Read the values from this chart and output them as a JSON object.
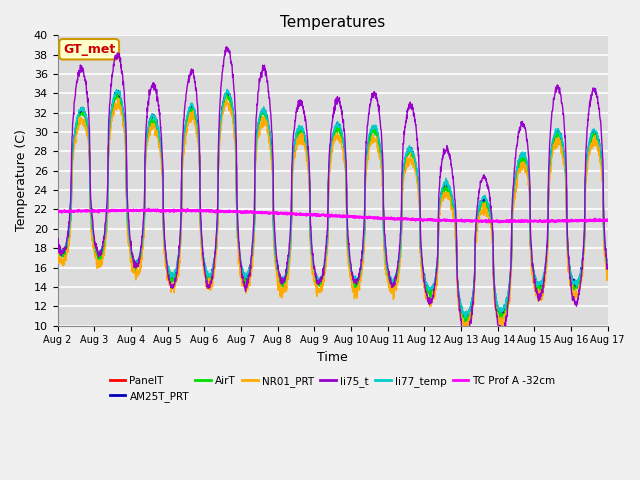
{
  "title": "Temperatures",
  "xlabel": "Time",
  "ylabel": "Temperature (C)",
  "ylim": [
    10,
    40
  ],
  "series_colors": {
    "PanelT": "#ff0000",
    "AM25T_PRT": "#0000bb",
    "AirT": "#00dd00",
    "NR01_PRT": "#ffaa00",
    "li75_t": "#9900cc",
    "li77_temp": "#00cccc",
    "TC Prof A -32cm": "#ff00ff"
  },
  "annotation_text": "GT_met",
  "annotation_color": "#cc0000",
  "annotation_bg": "#ffffcc",
  "annotation_border": "#cc9900",
  "plot_bg": "#dcdcdc",
  "fig_bg": "#f0f0f0",
  "grid_color": "#ffffff",
  "n_days": 15,
  "start_day": 2,
  "points_per_day": 144
}
